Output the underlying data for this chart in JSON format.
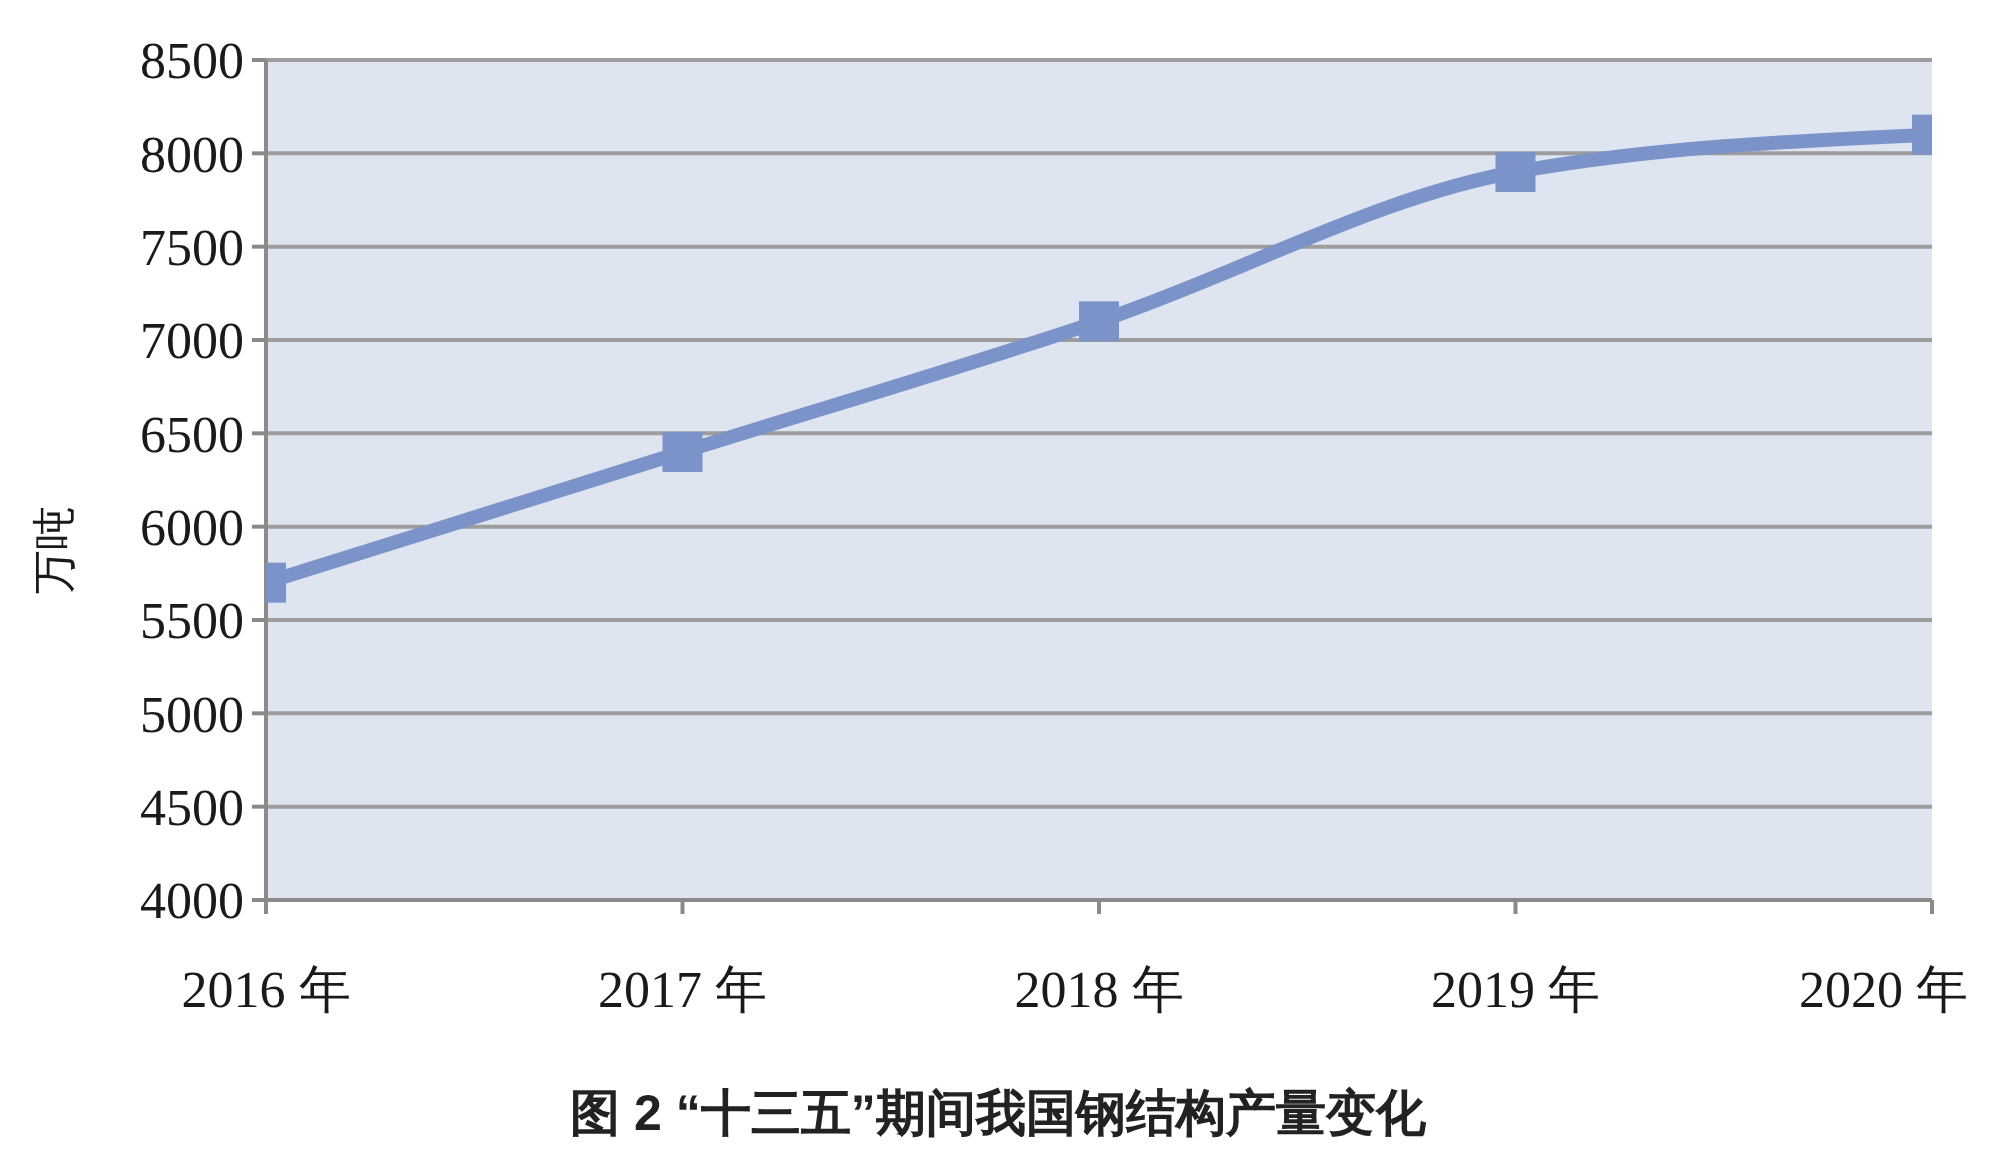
{
  "chart_data": {
    "type": "line",
    "title": "图 2 “十三五”期间我国钢结构产量变化",
    "ylabel": "万吨",
    "categories": [
      "2016 年",
      "2017 年",
      "2018 年",
      "2019 年",
      "2020 年"
    ],
    "series": [
      {
        "color": "#7b93c8",
        "values": [
          5700,
          6400,
          7100,
          7900,
          8100
        ]
      }
    ],
    "ylim": [
      4000,
      8500
    ],
    "yticks": [
      4000,
      4500,
      5000,
      5500,
      6000,
      6500,
      7000,
      7500,
      8000,
      8500
    ],
    "grid": "y",
    "legend": false,
    "marker": "square"
  }
}
